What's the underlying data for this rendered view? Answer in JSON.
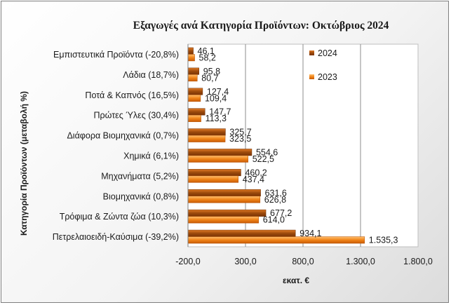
{
  "chart_data": {
    "type": "bar",
    "orientation": "horizontal",
    "title": "Εξαγωγές ανά Κατηγορία Προϊόντων:  Οκτώβριος 2024",
    "xlabel": "εκατ. €",
    "ylabel": "Κατηγορία Προϊόντων (μεταβολή %)",
    "xlim": [
      -200,
      1800
    ],
    "xticks": [
      "-200,0",
      "300,0",
      "800,0",
      "1.300,0",
      "1.800,0"
    ],
    "xtick_values": [
      -200,
      300,
      800,
      1300,
      1800
    ],
    "grid": "vertical",
    "legend": "top-right",
    "categories": [
      "Εμπιστευτικά Προϊόντα (-20,8%)",
      "Λάδια (18,7%)",
      "Ποτά & Καπνός (16,5%)",
      "Πρώτες Ύλες (30,4%)",
      "Διάφορα Βιομηχανικά (0,7%)",
      "Χημικά (6,1%)",
      "Μηχανήματα (5,2%)",
      "Βιομηχανικά (0,8%)",
      "Τρόφιμα & Ζώντα ζώα (10,3%)",
      "Πετρελαιοειδή-Καύσιμα (-39,2%)"
    ],
    "series": [
      {
        "name": "2024",
        "color": "#9c4a0c",
        "values": [
          46.1,
          95.8,
          127.4,
          147.7,
          325.7,
          554.6,
          460.2,
          631.6,
          677.2,
          934.1
        ],
        "labels": [
          "46,1",
          "95,8",
          "127,4",
          "147,7",
          "325,7",
          "554,6",
          "460,2",
          "631,6",
          "677,2",
          "934,1"
        ]
      },
      {
        "name": "2023",
        "color": "#ee7a12",
        "values": [
          58.2,
          80.7,
          109.4,
          113.3,
          323.5,
          522.5,
          437.4,
          626.8,
          614.0,
          1535.3
        ],
        "labels": [
          "58,2",
          "80,7",
          "109,4",
          "113,3",
          "323,5",
          "522,5",
          "437,4",
          "626,8",
          "614,0",
          "1.535,3"
        ]
      }
    ]
  }
}
